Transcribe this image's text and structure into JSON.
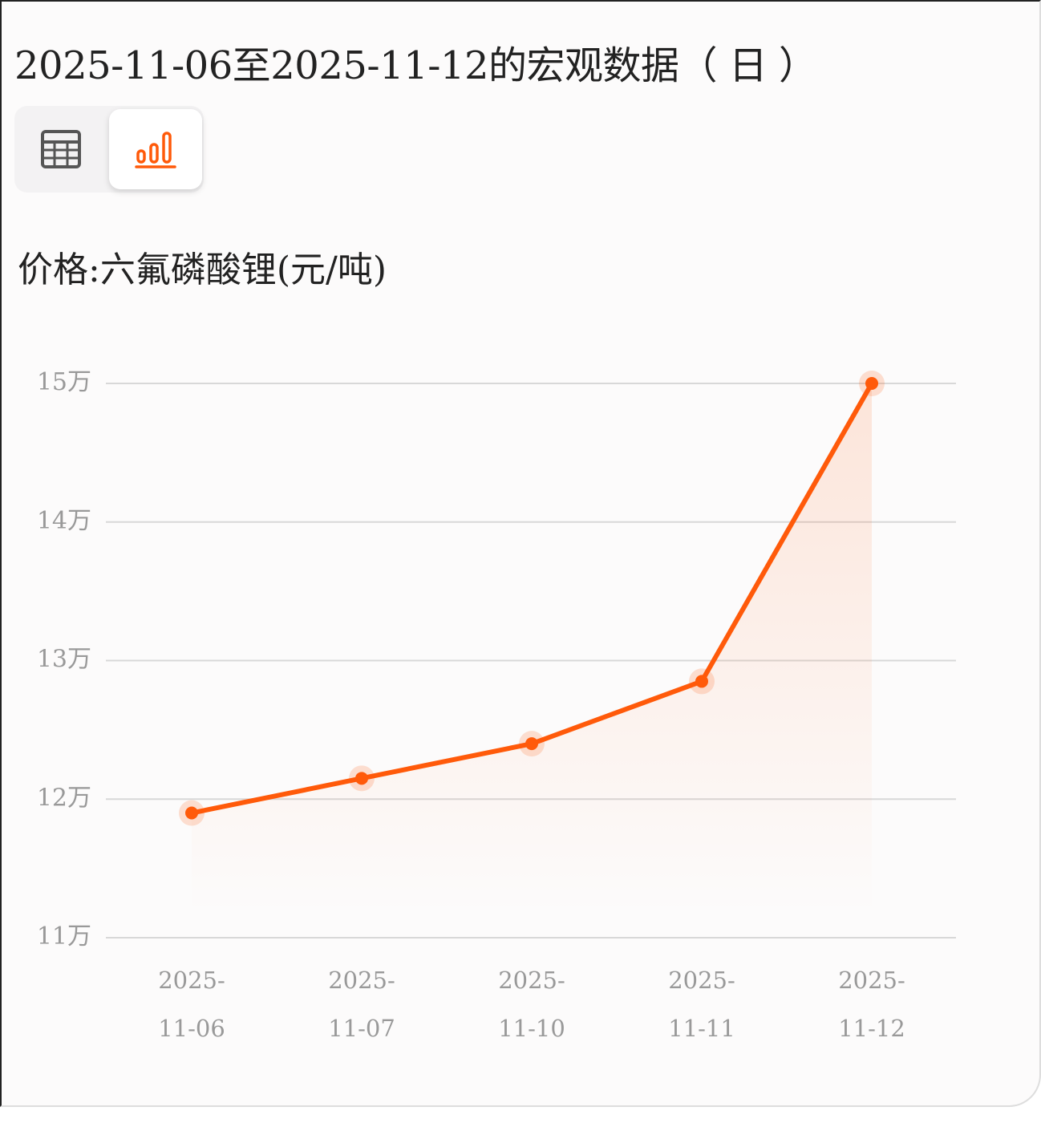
{
  "header": {
    "title": "2025-11-06至2025-11-12的宏观数据（ 日 ）"
  },
  "view_toggle": {
    "options": [
      {
        "name": "table-view",
        "icon": "table-icon",
        "selected": false
      },
      {
        "name": "chart-view",
        "icon": "bar-chart-icon",
        "selected": true
      }
    ]
  },
  "colors": {
    "accent": "#ff5a0a",
    "icon_inactive": "#555555",
    "grid": "#d8d8d8",
    "tick": "#999999"
  },
  "chart_data": {
    "type": "line",
    "title": "价格:六氟磷酸锂(元/吨)",
    "categories": [
      "2025-11-06",
      "2025-11-07",
      "2025-11-10",
      "2025-11-11",
      "2025-11-12"
    ],
    "category_lines": [
      [
        "2025-",
        "11-06"
      ],
      [
        "2025-",
        "11-07"
      ],
      [
        "2025-",
        "11-10"
      ],
      [
        "2025-",
        "11-11"
      ],
      [
        "2025-",
        "11-12"
      ]
    ],
    "values": [
      119000,
      121500,
      124000,
      128500,
      150000
    ],
    "ylim": [
      110000,
      150000
    ],
    "yticks": [
      110000,
      120000,
      130000,
      140000,
      150000
    ],
    "ytick_labels": [
      "11万",
      "12万",
      "13万",
      "14万",
      "15万"
    ],
    "grid": true
  }
}
